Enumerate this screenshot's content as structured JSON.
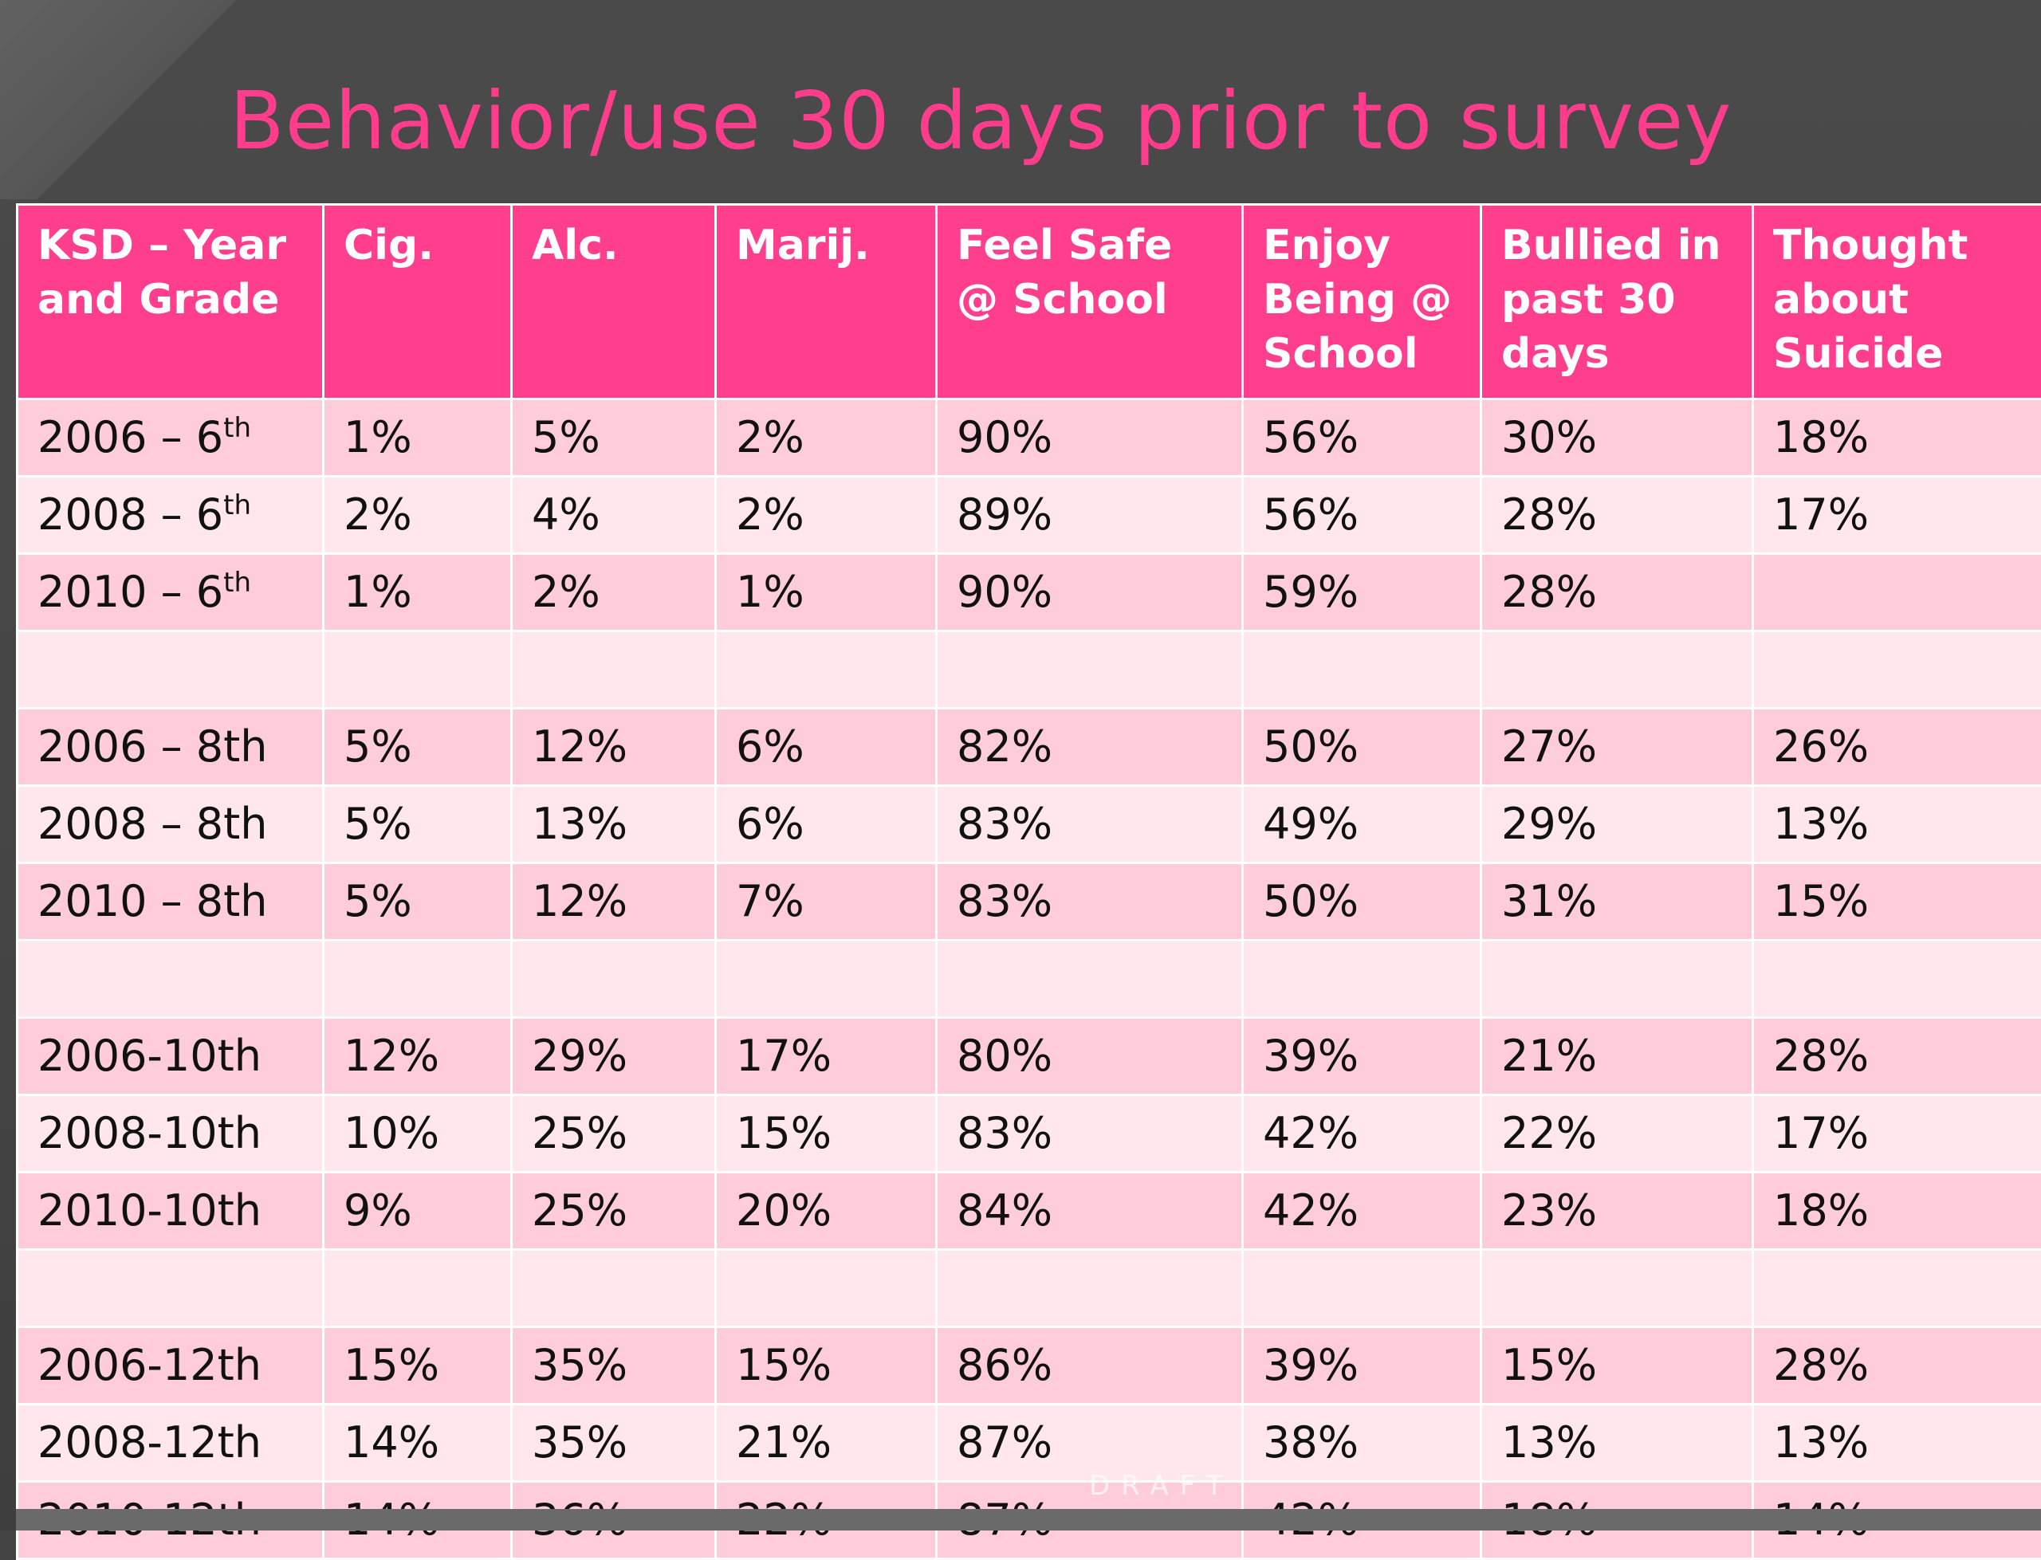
{
  "slide": {
    "title": "Behavior/use 30 days prior to survey",
    "watermark": "DRAFT"
  },
  "colors": {
    "background": "#444444",
    "title": "#ff3d8c",
    "header_fill": "#ff3e8d",
    "row_dark": "#ffccda",
    "row_light": "#ffe7ed"
  },
  "table": {
    "headers": [
      "KSD – Year and Grade",
      "Cig.",
      "Alc.",
      "Marij.",
      "Feel Safe @ School",
      "Enjoy Being @ School",
      "Bullied in past 30 days",
      "Thought about Suicide"
    ],
    "rows": [
      {
        "cells": [
          "2006 – 6",
          "1%",
          "5%",
          "2%",
          "90%",
          "56%",
          "30%",
          "18%"
        ],
        "sup": "th",
        "shade": "dark"
      },
      {
        "cells": [
          "2008 – 6",
          "2%",
          "4%",
          "2%",
          "89%",
          "56%",
          "28%",
          "17%"
        ],
        "sup": "th",
        "shade": "light"
      },
      {
        "cells": [
          "2010 – 6",
          "1%",
          "2%",
          "1%",
          "90%",
          "59%",
          "28%",
          ""
        ],
        "sup": "th",
        "shade": "dark"
      },
      {
        "cells": [
          "",
          "",
          "",
          "",
          "",
          "",
          "",
          ""
        ],
        "sup": "",
        "shade": "light"
      },
      {
        "cells": [
          "2006 – 8th",
          "5%",
          "12%",
          "6%",
          "82%",
          "50%",
          "27%",
          "26%"
        ],
        "sup": "",
        "shade": "dark"
      },
      {
        "cells": [
          "2008 – 8th",
          "5%",
          "13%",
          "6%",
          "83%",
          "49%",
          "29%",
          "13%"
        ],
        "sup": "",
        "shade": "light"
      },
      {
        "cells": [
          "2010 – 8th",
          "5%",
          "12%",
          "7%",
          "83%",
          "50%",
          "31%",
          "15%"
        ],
        "sup": "",
        "shade": "dark"
      },
      {
        "cells": [
          "",
          "",
          "",
          "",
          "",
          "",
          "",
          ""
        ],
        "sup": "",
        "shade": "light"
      },
      {
        "cells": [
          "2006-10th",
          "12%",
          "29%",
          "17%",
          "80%",
          "39%",
          "21%",
          "28%"
        ],
        "sup": "",
        "shade": "dark"
      },
      {
        "cells": [
          "2008-10th",
          "10%",
          "25%",
          "15%",
          "83%",
          "42%",
          "22%",
          "17%"
        ],
        "sup": "",
        "shade": "light"
      },
      {
        "cells": [
          "2010-10th",
          "9%",
          "25%",
          "20%",
          "84%",
          "42%",
          "23%",
          "18%"
        ],
        "sup": "",
        "shade": "dark"
      },
      {
        "cells": [
          "",
          "",
          "",
          "",
          "",
          "",
          "",
          ""
        ],
        "sup": "",
        "shade": "light"
      },
      {
        "cells": [
          "2006-12th",
          "15%",
          "35%",
          "15%",
          "86%",
          "39%",
          "15%",
          "28%"
        ],
        "sup": "",
        "shade": "dark"
      },
      {
        "cells": [
          "2008-12th",
          "14%",
          "35%",
          "21%",
          "87%",
          "38%",
          "13%",
          "13%"
        ],
        "sup": "",
        "shade": "light"
      },
      {
        "cells": [
          "2010-12th",
          "14%",
          "36%",
          "22%",
          "87%",
          "42%",
          "18%",
          "14%"
        ],
        "sup": "",
        "shade": "dark"
      }
    ]
  }
}
